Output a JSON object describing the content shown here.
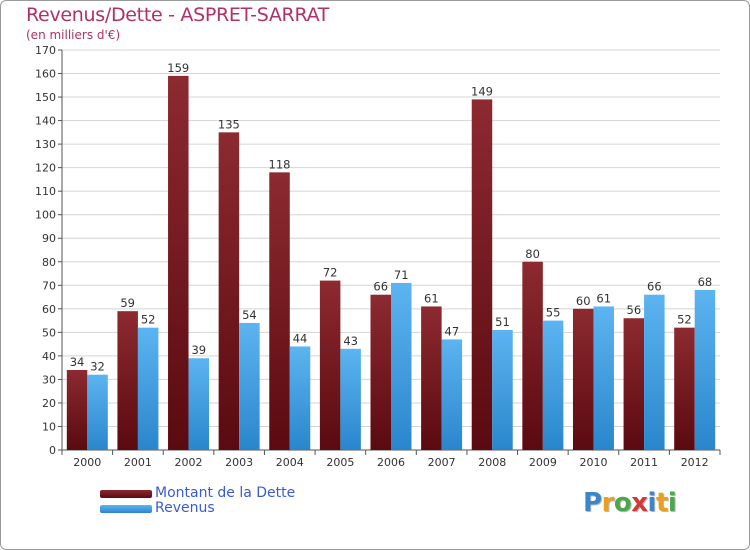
{
  "header": {
    "title": "Revenus/Dette - ASPRET-SARRAT",
    "subtitle": "(en milliers d'€)"
  },
  "legend": {
    "items": [
      {
        "label": "Montant de la Dette",
        "color": "#7a1a22"
      },
      {
        "label": "Revenus",
        "color": "#3d9ee0"
      }
    ]
  },
  "logo": {
    "letters": [
      "P",
      "r",
      "o",
      "x",
      "i",
      "t",
      "i"
    ],
    "colors": [
      "#3a86c8",
      "#e8a020",
      "#4aa84a",
      "#d03a3a",
      "#3a86c8",
      "#e8a020",
      "#4aa84a"
    ]
  },
  "chart_data": {
    "type": "bar",
    "title": "Revenus/Dette - ASPRET-SARRAT",
    "subtitle": "(en milliers d'€)",
    "categories": [
      "2000",
      "2001",
      "2002",
      "2003",
      "2004",
      "2005",
      "2006",
      "2007",
      "2008",
      "2009",
      "2010",
      "2011",
      "2012"
    ],
    "series": [
      {
        "name": "Montant de la Dette",
        "color": "#7a1a22",
        "values": [
          34,
          59,
          159,
          135,
          118,
          72,
          66,
          61,
          149,
          80,
          60,
          56,
          52
        ]
      },
      {
        "name": "Revenus",
        "color": "#3d9ee0",
        "values": [
          32,
          52,
          39,
          54,
          44,
          43,
          71,
          47,
          51,
          55,
          61,
          66,
          68
        ]
      }
    ],
    "ylim": [
      0,
      170
    ],
    "ytick_step": 10,
    "grid": true,
    "legend_position": "bottom-left"
  }
}
